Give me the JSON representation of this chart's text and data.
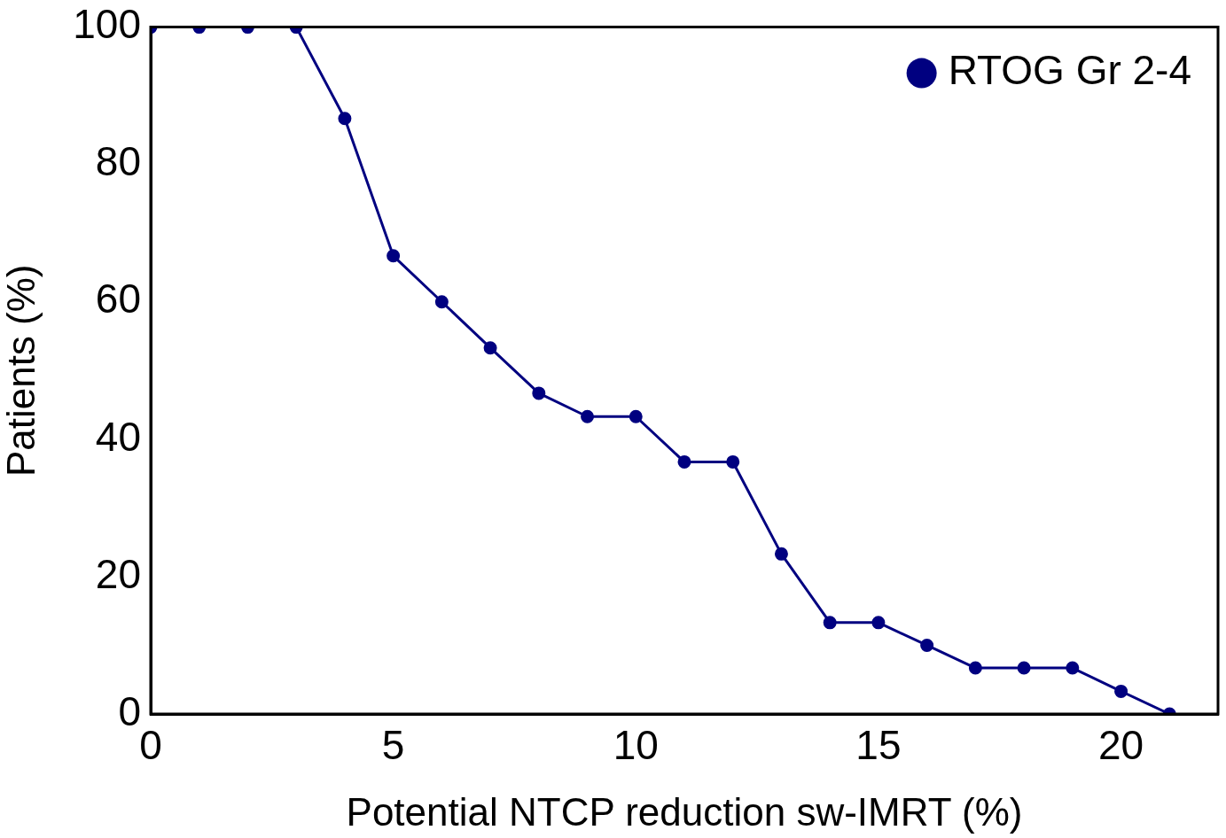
{
  "chart_data": {
    "type": "line",
    "xlabel": "Potential NTCP reduction sw-IMRT (%)",
    "ylabel": "Patients (%)",
    "x": [
      0,
      1,
      2,
      3,
      4,
      5,
      6,
      7,
      8,
      9,
      10,
      11,
      12,
      13,
      14,
      15,
      16,
      17,
      18,
      19,
      20,
      21
    ],
    "series": [
      {
        "name": "RTOG Gr 2-4",
        "color": "#000080",
        "values": [
          100,
          100,
          100,
          100,
          86.7,
          66.7,
          60,
          53.3,
          46.7,
          43.3,
          43.3,
          36.7,
          36.7,
          23.3,
          13.3,
          13.3,
          10,
          6.7,
          6.7,
          6.7,
          3.3,
          0
        ]
      }
    ],
    "xlim": [
      0,
      22
    ],
    "xticks": [
      0,
      5,
      10,
      15,
      20
    ],
    "ylim": [
      0,
      100
    ],
    "yticks": [
      0,
      20,
      40,
      60,
      80,
      100
    ],
    "grid": false,
    "legend": "top right",
    "marker": "circle",
    "line_style": "solid"
  }
}
